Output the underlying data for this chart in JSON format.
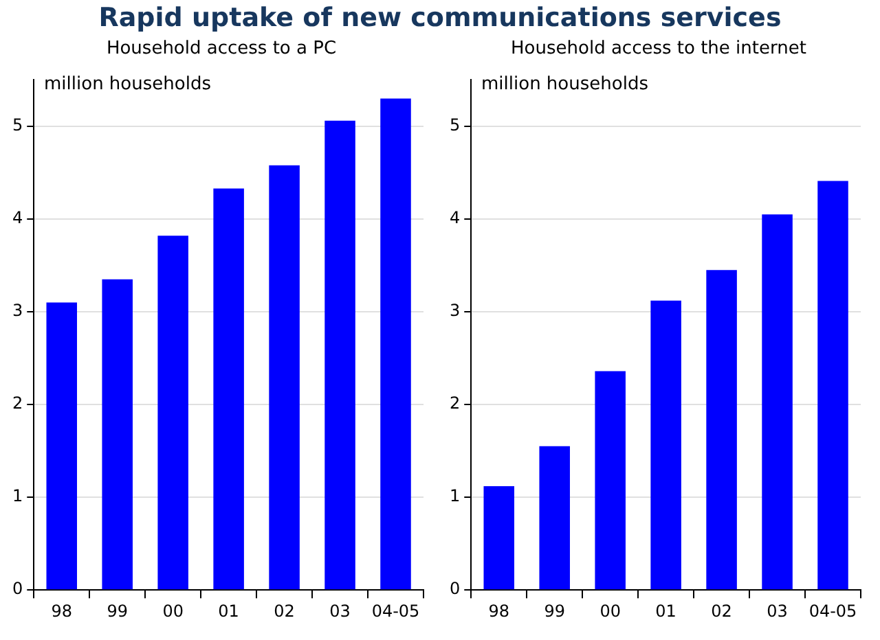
{
  "chart_data": [
    {
      "type": "bar",
      "title": "Rapid uptake of new communications services",
      "subtitle": "Household access to a PC",
      "ylabel": "million households",
      "categories": [
        "98",
        "99",
        "00",
        "01",
        "02",
        "03",
        "04-05"
      ],
      "values": [
        3.1,
        3.35,
        3.82,
        4.33,
        4.58,
        5.06,
        5.3
      ],
      "color": "#0000ff",
      "ylim": [
        0,
        5.5
      ],
      "yticks": [
        0,
        1,
        2,
        3,
        4,
        5
      ],
      "grid": "y",
      "legend": false
    },
    {
      "type": "bar",
      "subtitle": "Household access to the internet",
      "ylabel": "million households",
      "categories": [
        "98",
        "99",
        "00",
        "01",
        "02",
        "03",
        "04-05"
      ],
      "values": [
        1.12,
        1.55,
        2.36,
        3.12,
        3.45,
        4.05,
        4.41
      ],
      "color": "#0000ff",
      "ylim": [
        0,
        5.5
      ],
      "yticks": [
        0,
        1,
        2,
        3,
        4,
        5
      ],
      "grid": "y",
      "legend": false
    }
  ]
}
